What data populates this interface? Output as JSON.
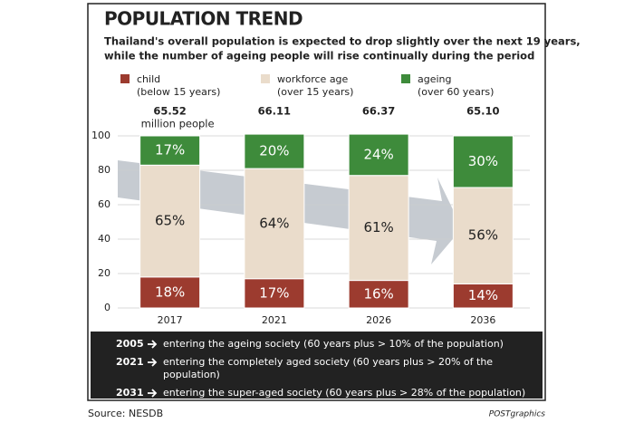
{
  "chart_data": {
    "type": "stacked_bar",
    "title": "POPULATION TREND",
    "subtitle": [
      "Thailand's overall population is expected to drop slightly over the next 19 years,",
      "while the number of ageing people will rise continually during the period"
    ],
    "categories": [
      "2017",
      "2021",
      "2026",
      "2036"
    ],
    "series": [
      {
        "name": "child",
        "description": "(below 15 years)",
        "color": "#9c3b2f",
        "label_color": "#ffffff",
        "values": [
          18,
          17,
          16,
          14
        ],
        "value_labels": [
          "18%",
          "17%",
          "16%",
          "14%"
        ]
      },
      {
        "name": "workforce age",
        "description": "(over 15 years)",
        "color": "#eadccb",
        "label_color": "#222222",
        "values": [
          65,
          64,
          61,
          56
        ],
        "value_labels": [
          "65%",
          "64%",
          "61%",
          "56%"
        ]
      },
      {
        "name": "ageing",
        "description": "(over 60 years)",
        "color": "#3e8b3b",
        "label_color": "#ffffff",
        "values": [
          17,
          20,
          24,
          30
        ],
        "value_labels": [
          "17%",
          "20%",
          "24%",
          "30%"
        ]
      }
    ],
    "totals": {
      "values": [
        65.52,
        66.11,
        66.37,
        65.1
      ],
      "value_labels": [
        "65.52",
        "66.11",
        "66.37",
        "65.10"
      ],
      "unit": "million people"
    },
    "ylim": [
      0,
      100
    ],
    "yticks": [
      0,
      20,
      40,
      60,
      80,
      100
    ],
    "grid": true,
    "milestones": [
      {
        "year": "2005",
        "lines": [
          "entering the ageing society (60 years plus > 10% of the population)"
        ]
      },
      {
        "year": "2021",
        "lines": [
          "entering the completely aged society  (60 years plus > 20% of the",
          "population)"
        ]
      },
      {
        "year": "2031",
        "lines": [
          "entering the super-aged society (60 years plus > 28% of the population)"
        ]
      }
    ],
    "source": "Source: NESDB",
    "credit": "POSTgraphics"
  }
}
